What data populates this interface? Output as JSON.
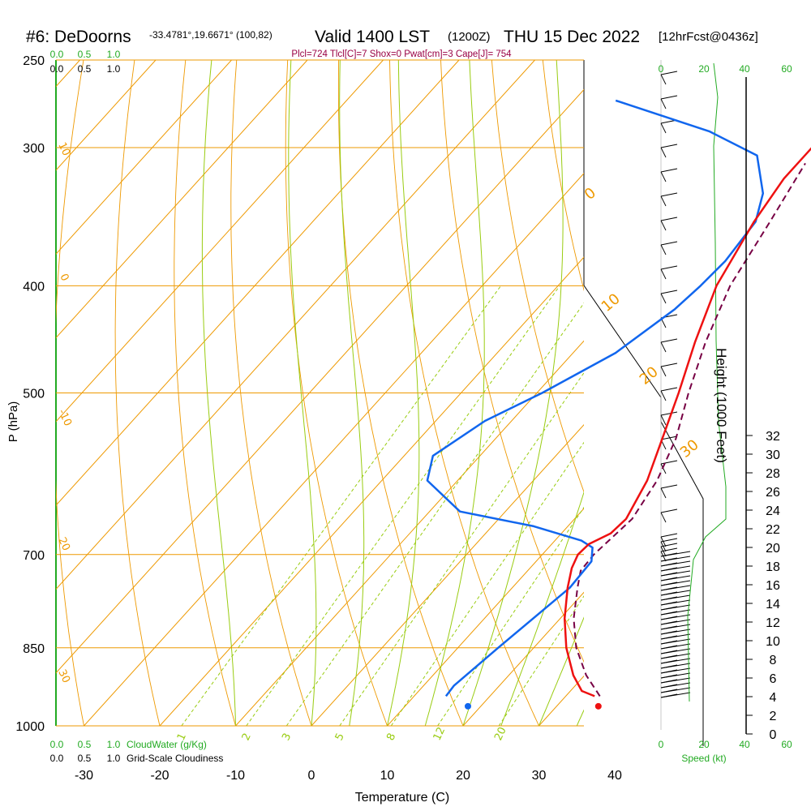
{
  "header": {
    "site": "#6: DeDoorns",
    "coords": "-33.4781°,19.6671° (100,82)",
    "valid": "Valid 1400 LST",
    "zulu": "(1200Z)",
    "date": "THU 15 Dec 2022",
    "forecast": "[12hrFcst@0436z]",
    "params": "Plcl=724 Tlcl[C]=7 Shox=0 Pwat[cm]=3 Cape[J]= 754"
  },
  "colors": {
    "temperature": "#ee1111",
    "dewpoint": "#1166ee",
    "parcel": "#770044",
    "isotherm": "#ee9900",
    "dry_adiabat": "#99cc11",
    "moist_adiabat": "#99cc11",
    "mixing_ratio": "#99cc11",
    "cloud_scale": "#22aa22",
    "params_text": "#990044"
  },
  "chart_data": {
    "type": "line",
    "title": "#6: DeDoorns",
    "xlabel": "Temperature (C)",
    "ylabel": "P (hPa)",
    "y2label": "Height (1000 Feet)",
    "x_ticks": [
      "-30",
      "-20",
      "-10",
      "0",
      "10",
      "20",
      "30",
      "40"
    ],
    "p_ticks": [
      "250",
      "300",
      "400",
      "500",
      "700",
      "850",
      "1000"
    ],
    "height_ticks": [
      "0",
      "2",
      "4",
      "6",
      "8",
      "10",
      "12",
      "14",
      "16",
      "18",
      "20",
      "22",
      "24",
      "26",
      "28",
      "30",
      "32"
    ],
    "isotherm_labels": [
      "30",
      "20",
      "10",
      "0",
      "-10",
      "-20",
      "-30",
      "0",
      "10",
      "20",
      "30"
    ],
    "mixing_ratio_labels": [
      "1",
      "2",
      "3",
      "5",
      "8",
      "12",
      "20"
    ],
    "temperature_profile": [
      {
        "p": 940,
        "t": 33.8
      },
      {
        "p": 930,
        "t": 31.5
      },
      {
        "p": 900,
        "t": 28.5
      },
      {
        "p": 850,
        "t": 24.3
      },
      {
        "p": 800,
        "t": 20.6
      },
      {
        "p": 750,
        "t": 17.3
      },
      {
        "p": 720,
        "t": 15.5
      },
      {
        "p": 700,
        "t": 14.7
      },
      {
        "p": 685,
        "t": 14.9
      },
      {
        "p": 670,
        "t": 16.5
      },
      {
        "p": 650,
        "t": 16.8
      },
      {
        "p": 600,
        "t": 15.0
      },
      {
        "p": 550,
        "t": 12.0
      },
      {
        "p": 500,
        "t": 8.7
      },
      {
        "p": 450,
        "t": 4.8
      },
      {
        "p": 400,
        "t": 0.9
      },
      {
        "p": 350,
        "t": -1.8
      },
      {
        "p": 320,
        "t": -3.0
      },
      {
        "p": 300,
        "t": -3.0
      },
      {
        "p": 280,
        "t": -1.2
      },
      {
        "p": 260,
        "t": 0.5
      },
      {
        "p": 253,
        "t": 1.2
      }
    ],
    "dewpoint_profile": [
      {
        "p": 940,
        "t": 14.2
      },
      {
        "p": 920,
        "t": 14.0
      },
      {
        "p": 850,
        "t": 15.3
      },
      {
        "p": 750,
        "t": 17.6
      },
      {
        "p": 710,
        "t": 17.3
      },
      {
        "p": 690,
        "t": 15.8
      },
      {
        "p": 680,
        "t": 13.5
      },
      {
        "p": 660,
        "t": 5.5
      },
      {
        "p": 640,
        "t": -6.0
      },
      {
        "p": 600,
        "t": -14.0
      },
      {
        "p": 570,
        "t": -16.2
      },
      {
        "p": 530,
        "t": -13.5
      },
      {
        "p": 500,
        "t": -9.3
      },
      {
        "p": 460,
        "t": -4.4
      },
      {
        "p": 420,
        "t": -1.8
      },
      {
        "p": 400,
        "t": -1.2
      },
      {
        "p": 380,
        "t": -0.9
      },
      {
        "p": 350,
        "t": -1.6
      },
      {
        "p": 330,
        "t": -4.0
      },
      {
        "p": 305,
        "t": -9.3
      },
      {
        "p": 290,
        "t": -18.5
      },
      {
        "p": 272,
        "t": -34.5
      }
    ],
    "parcel_profile": [
      {
        "p": 940,
        "t": 34.5
      },
      {
        "p": 900,
        "t": 30.2
      },
      {
        "p": 850,
        "t": 25.6
      },
      {
        "p": 800,
        "t": 21.8
      },
      {
        "p": 750,
        "t": 18.6
      },
      {
        "p": 724,
        "t": 17.0
      },
      {
        "p": 700,
        "t": 16.8
      },
      {
        "p": 650,
        "t": 17.6
      },
      {
        "p": 600,
        "t": 16.3
      },
      {
        "p": 550,
        "t": 13.8
      },
      {
        "p": 500,
        "t": 10.0
      },
      {
        "p": 450,
        "t": 6.2
      },
      {
        "p": 400,
        "t": 2.7
      },
      {
        "p": 350,
        "t": 0.3
      },
      {
        "p": 310,
        "t": -2.0
      }
    ],
    "surface_temperature": 35.5,
    "surface_dewpoint": 18.3,
    "cloud_scale_labels": [
      "0.0",
      "0.5",
      "1.0"
    ],
    "cloudiness_labels": [
      "0.0",
      "0.5",
      "1.0"
    ],
    "speed_labels": [
      "0",
      "20",
      "40",
      "60"
    ],
    "cloudwater_label": "CloudWater (g/Kg)",
    "cloudiness_label": "Grid-Scale Cloudiness",
    "speed_label": "Speed (kt)",
    "grid": true
  }
}
